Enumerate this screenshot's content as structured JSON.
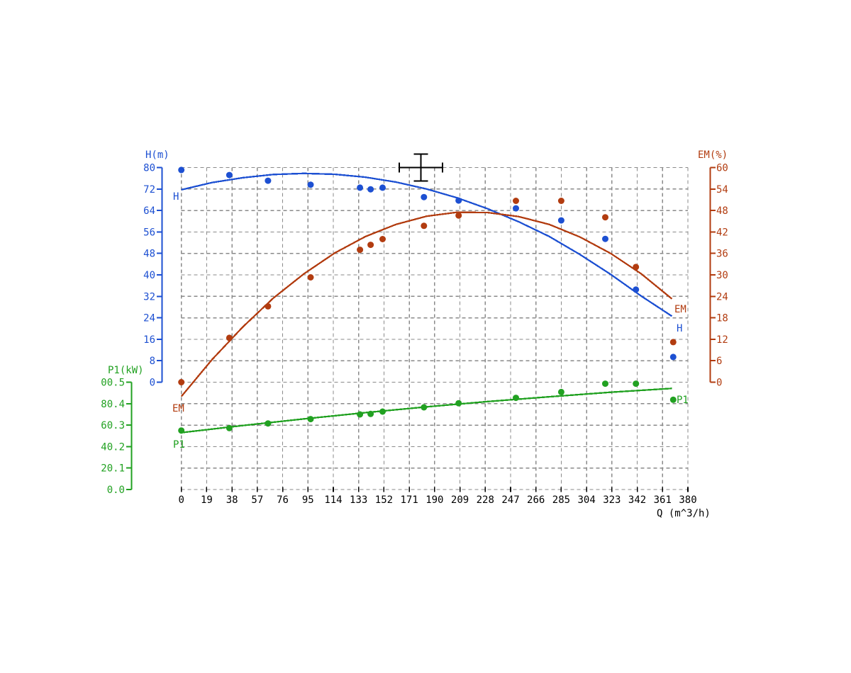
{
  "chart_data": {
    "type": "line",
    "title": "",
    "x_axis": {
      "title": "Q (m^3/h)",
      "min": 0,
      "max": 380,
      "tick_step": 19,
      "ticks": [
        0,
        19,
        38,
        57,
        76,
        95,
        114,
        133,
        152,
        171,
        190,
        209,
        228,
        247,
        266,
        285,
        304,
        323,
        342,
        361,
        380
      ],
      "color": "#000000"
    },
    "left_axis_h": {
      "title": "H(m)",
      "min": 0,
      "max": 80,
      "tick_step": 8,
      "ticks": [
        80,
        72,
        64,
        56,
        48,
        40,
        32,
        24,
        16,
        8,
        0
      ],
      "color": "#1d50d2"
    },
    "right_axis_em": {
      "title": "EM(%)",
      "min": 0,
      "max": 60,
      "tick_step": 6,
      "ticks": [
        60,
        54,
        48,
        42,
        36,
        30,
        24,
        18,
        12,
        6,
        0
      ],
      "color": "#b23c10"
    },
    "left_axis_p1": {
      "title": "P1(kW)",
      "min": 0.0,
      "max": 0.5,
      "tick_labels": [
        "00.5",
        "80.4",
        "60.3",
        "40.2",
        "20.1",
        "0.0"
      ],
      "color": "#21a121"
    },
    "grid": {
      "on": true,
      "color": "#8a8a8a",
      "style": "dashed"
    },
    "legend_position": "none",
    "series": [
      {
        "name": "H",
        "axis": "H",
        "color": "#1d50d2",
        "start_label": "H",
        "end_label": "H",
        "points": [
          [
            0,
            79.1
          ],
          [
            36,
            77.2
          ],
          [
            65,
            75.1
          ],
          [
            97,
            73.6
          ],
          [
            134,
            72.5
          ],
          [
            142,
            71.9
          ],
          [
            151,
            72.5
          ],
          [
            182,
            69.0
          ],
          [
            208,
            67.7
          ],
          [
            251,
            64.8
          ],
          [
            285,
            60.3
          ],
          [
            318,
            53.4
          ],
          [
            341,
            34.5
          ],
          [
            369,
            9.4
          ]
        ],
        "curve": [
          [
            0,
            71.7
          ],
          [
            23,
            74.4
          ],
          [
            46,
            76.2
          ],
          [
            69,
            77.4
          ],
          [
            92,
            77.8
          ],
          [
            115,
            77.5
          ],
          [
            138,
            76.4
          ],
          [
            161,
            74.6
          ],
          [
            184,
            72.0
          ],
          [
            207,
            68.7
          ],
          [
            230,
            64.6
          ],
          [
            253,
            59.8
          ],
          [
            276,
            54.3
          ],
          [
            299,
            47.6
          ],
          [
            322,
            40.2
          ],
          [
            345,
            32.1
          ],
          [
            368,
            24.6
          ]
        ]
      },
      {
        "name": "EM",
        "axis": "EM",
        "color": "#b23c10",
        "start_label": "EM",
        "end_label": "EM",
        "points": [
          [
            0,
            0
          ],
          [
            36,
            12.4
          ],
          [
            65,
            21.2
          ],
          [
            97,
            29.3
          ],
          [
            134,
            37.0
          ],
          [
            142,
            38.4
          ],
          [
            151,
            40.0
          ],
          [
            182,
            43.7
          ],
          [
            208,
            46.6
          ],
          [
            251,
            50.7
          ],
          [
            285,
            50.7
          ],
          [
            318,
            46.1
          ],
          [
            341,
            32.2
          ],
          [
            369,
            11.2
          ]
        ],
        "curve": [
          [
            0,
            -4.0
          ],
          [
            23,
            6.3
          ],
          [
            46,
            15.4
          ],
          [
            69,
            23.5
          ],
          [
            92,
            30.3
          ],
          [
            115,
            36.1
          ],
          [
            138,
            40.7
          ],
          [
            161,
            44.1
          ],
          [
            184,
            46.4
          ],
          [
            207,
            47.5
          ],
          [
            230,
            47.4
          ],
          [
            253,
            46.3
          ],
          [
            276,
            44.1
          ],
          [
            299,
            40.6
          ],
          [
            322,
            36.0
          ],
          [
            345,
            30.3
          ],
          [
            368,
            23.3
          ]
        ]
      },
      {
        "name": "P1",
        "axis": "P1",
        "color": "#21a121",
        "start_label": "P1",
        "end_label": "P1",
        "points": [
          [
            0,
            0.275
          ],
          [
            36,
            0.286
          ],
          [
            65,
            0.308
          ],
          [
            97,
            0.328
          ],
          [
            134,
            0.35
          ],
          [
            142,
            0.352
          ],
          [
            151,
            0.363
          ],
          [
            182,
            0.383
          ],
          [
            208,
            0.402
          ],
          [
            251,
            0.427
          ],
          [
            285,
            0.454
          ],
          [
            318,
            0.493
          ],
          [
            341,
            0.493
          ],
          [
            369,
            0.418
          ]
        ],
        "curve": [
          [
            0,
            0.265
          ],
          [
            46,
            0.298
          ],
          [
            92,
            0.329
          ],
          [
            138,
            0.358
          ],
          [
            184,
            0.385
          ],
          [
            230,
            0.41
          ],
          [
            276,
            0.432
          ],
          [
            322,
            0.453
          ],
          [
            368,
            0.471
          ]
        ]
      }
    ],
    "marker": {
      "type": "crosshair",
      "color": "#000000",
      "q_center": 179.7,
      "h_center": 80,
      "q_halfspan": 16.3,
      "h_halfspan": 5.0
    }
  }
}
